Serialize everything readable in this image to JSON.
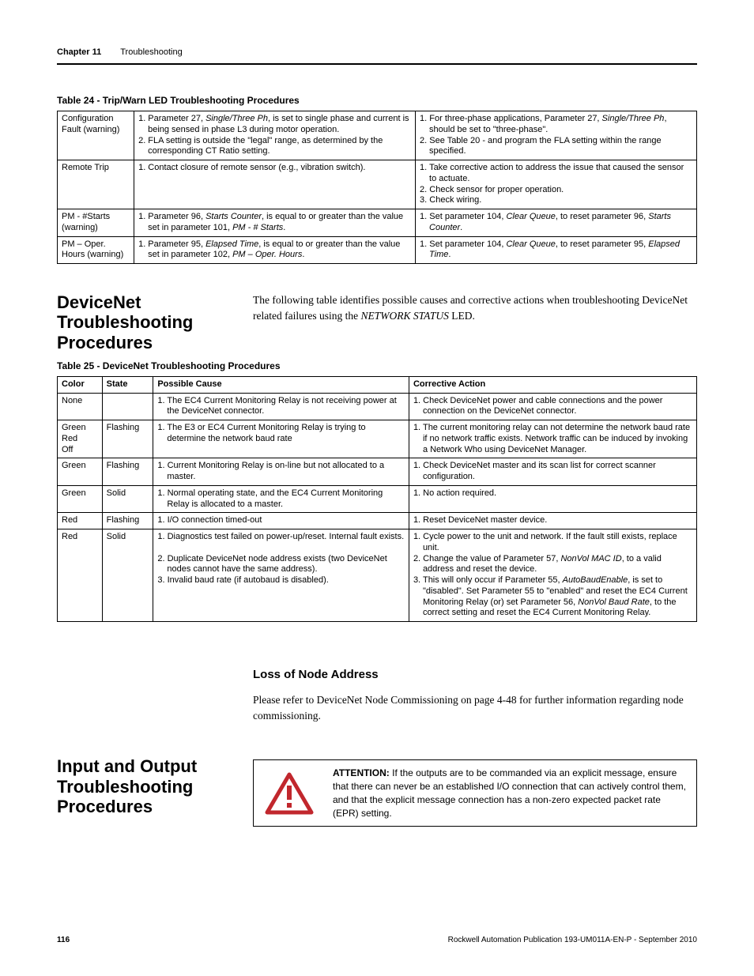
{
  "header": {
    "chapter": "Chapter 11",
    "title": "Troubleshooting"
  },
  "table24": {
    "title": "Table 24 - Trip/Warn LED Troubleshooting Procedures",
    "col_widths": [
      "12%",
      "44%",
      "44%"
    ],
    "rows": [
      {
        "c0": "Configuration Fault (warning)",
        "c1_items": [
          "Parameter 27, <i>Single/Three Ph</i>, is set to single phase and current is being sensed in phase L3 during motor operation.",
          "FLA setting is outside the \"legal\" range, as determined by the corresponding CT Ratio setting."
        ],
        "c2_items": [
          "For three-phase applications, Parameter 27, <i>Single/Three Ph</i>, should be set to \"three-phase\".",
          "See Table 20 - and program the FLA setting within the range specified."
        ]
      },
      {
        "c0": "Remote Trip",
        "c1_items": [
          "Contact closure of remote sensor (e.g., vibration switch)."
        ],
        "c2_items": [
          "Take corrective action to address the issue that caused the sensor to actuate.",
          "Check sensor for proper operation.",
          "Check wiring."
        ]
      },
      {
        "c0": "PM - #Starts (warning)",
        "c1_items": [
          "Parameter 96, <i>Starts Counter</i>, is equal to or greater than the value set in parameter 101, <i>PM - # Starts</i>."
        ],
        "c2_items": [
          "Set parameter 104, <i>Clear Queue</i>, to reset parameter 96, <i>Starts Counter</i>."
        ]
      },
      {
        "c0": "PM – Oper. Hours (warning)",
        "c1_items": [
          "Parameter 95, <i>Elapsed Time</i>, is equal to or greater than the value set in parameter 102, <i>PM – Oper. Hours</i>."
        ],
        "c2_items": [
          "Set parameter 104, <i>Clear Queue</i>, to reset parameter 95, <i>Elapsed Time</i>."
        ]
      }
    ]
  },
  "devicenet": {
    "heading": "DeviceNet Troubleshooting Procedures",
    "intro": "The following table identifies possible causes and corrective actions when troubleshooting DeviceNet related failures using the <i>NETWORK STATUS</i> LED."
  },
  "table25": {
    "title": "Table 25 - DeviceNet Troubleshooting Procedures",
    "headers": [
      "Color",
      "State",
      "Possible Cause",
      "Corrective Action"
    ],
    "col_widths": [
      "7%",
      "8%",
      "40%",
      "45%"
    ],
    "rows": [
      {
        "color": "None",
        "state": "",
        "cause_items": [
          "The EC4 Current Monitoring Relay is not receiving power at the DeviceNet connector."
        ],
        "action_items": [
          "Check DeviceNet power and cable connections and the power connection on the DeviceNet connector."
        ]
      },
      {
        "color": "Green\nRed\nOff",
        "state": "Flashing",
        "cause_items": [
          "The E3 or EC4 Current Monitoring Relay is trying to determine the network baud rate"
        ],
        "action_items": [
          "The current monitoring relay can not determine the network baud rate if no network traffic exists. Network traffic can be induced by invoking a Network Who using DeviceNet Manager."
        ]
      },
      {
        "color": "Green",
        "state": "Flashing",
        "cause_items": [
          "Current Monitoring Relay is on-line but not allocated to a master."
        ],
        "action_items": [
          "Check DeviceNet master and its scan list for correct scanner configuration."
        ]
      },
      {
        "color": "Green",
        "state": "Solid",
        "cause_items": [
          "Normal operating state, and the EC4 Current Monitoring Relay is allocated to a master."
        ],
        "action_items": [
          "No action required."
        ]
      },
      {
        "color": "Red",
        "state": "Flashing",
        "cause_items": [
          "I/O connection timed-out"
        ],
        "action_items": [
          "Reset DeviceNet master device."
        ]
      },
      {
        "color": "Red",
        "state": "Solid",
        "cause_items": [
          "Diagnostics test failed on power-up/reset. Internal fault exists.",
          "Duplicate DeviceNet node address exists (two DeviceNet nodes cannot have the same address).",
          "Invalid baud rate (if autobaud is disabled)."
        ],
        "cause_blank_after": [
          0
        ],
        "action_items": [
          "Cycle power to the unit and network. If the fault still exists, replace unit.",
          "Change the value of Parameter 57, <i>NonVol MAC ID</i>, to a valid address and reset the device.",
          "This will only occur if Parameter 55, <i>AutoBaudEnable</i>, is set to \"disabled\". Set Parameter 55 to \"enabled\" and reset the EC4 Current Monitoring Relay (or) set Parameter 56, <i>NonVol Baud Rate</i>, to the correct setting and reset the EC4 Current Monitoring Relay."
        ]
      }
    ]
  },
  "loss": {
    "heading": "Loss of Node Address",
    "text": "Please refer to DeviceNet Node Commissioning on page 4-48 for further information regarding node commissioning."
  },
  "io": {
    "heading": "Input and Output Troubleshooting Procedures",
    "attention_label": "ATTENTION:",
    "attention_text": "If the outputs are to be commanded via an explicit message, ensure that there can never be an established I/O connection that can actively control them, and that the explicit message connection has a non-zero expected packet rate (EPR) setting.",
    "attn_icon_colors": {
      "stroke": "#c1272d",
      "fill": "#ffffff"
    }
  },
  "footer": {
    "page": "116",
    "pub": "Rockwell Automation Publication 193-UM011A-EN-P - September 2010"
  }
}
